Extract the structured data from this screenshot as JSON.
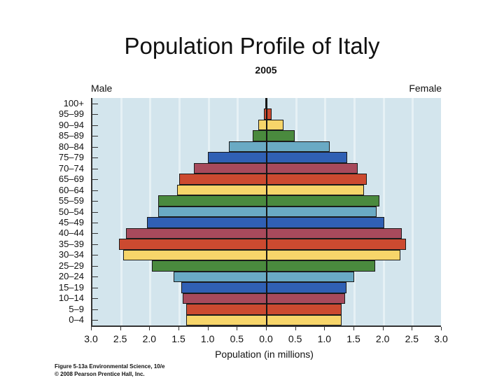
{
  "slide": {
    "title": "Population Profile of Italy",
    "caption_line1": "Figure 5-13a  Environmental Science, 10/e",
    "caption_line2": "© 2008 Pearson Prentice Hall, Inc."
  },
  "colors": {
    "plot_background": "#d3e5ed",
    "gridline": "#e6f1f5",
    "bar_cycle": [
      "#f7d56a",
      "#cc4a30",
      "#a84a5c",
      "#3060b4",
      "#6aaac4",
      "#4a8a3e"
    ]
  },
  "chart_data": {
    "type": "bar",
    "orientation": "horizontal",
    "subtype": "population-pyramid",
    "title": "2005",
    "xlabel": "Population (in millions)",
    "ylabel": "",
    "xlim": [
      -3.0,
      3.0
    ],
    "x_tick_labels": [
      "3.0",
      "2.5",
      "2.0",
      "1.5",
      "1.0",
      "0.5",
      "0.0",
      "0.5",
      "1.0",
      "1.5",
      "2.0",
      "2.5",
      "3.0"
    ],
    "grid": true,
    "legend": [
      "Male",
      "Female"
    ],
    "legend_position": "top (Male left, Female right)",
    "categories": [
      "0–4",
      "5–9",
      "10–14",
      "15–19",
      "20–24",
      "25–29",
      "30–34",
      "35–39",
      "40–44",
      "45–49",
      "50–54",
      "55–59",
      "60–64",
      "65–69",
      "70–74",
      "75–79",
      "80–84",
      "85–89",
      "90–94",
      "95–99",
      "100+"
    ],
    "series": [
      {
        "name": "Male",
        "values": [
          1.37,
          1.37,
          1.43,
          1.45,
          1.58,
          1.96,
          2.45,
          2.52,
          2.4,
          2.04,
          1.85,
          1.85,
          1.52,
          1.49,
          1.24,
          1.0,
          0.64,
          0.23,
          0.13,
          0.04,
          0.01
        ]
      },
      {
        "name": "Female",
        "values": [
          1.28,
          1.28,
          1.34,
          1.37,
          1.5,
          1.86,
          2.29,
          2.39,
          2.32,
          2.02,
          1.88,
          1.93,
          1.67,
          1.72,
          1.56,
          1.38,
          1.08,
          0.48,
          0.29,
          0.08,
          0.01
        ]
      }
    ]
  }
}
